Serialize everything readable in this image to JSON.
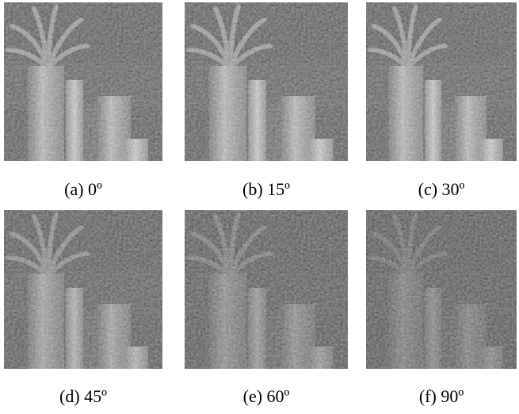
{
  "figure": {
    "captions": [
      "(a) 0º",
      "(b) 15º",
      "(c) 30º",
      "(d) 45º",
      "(e) 60º",
      "(f) 90º"
    ]
  }
}
